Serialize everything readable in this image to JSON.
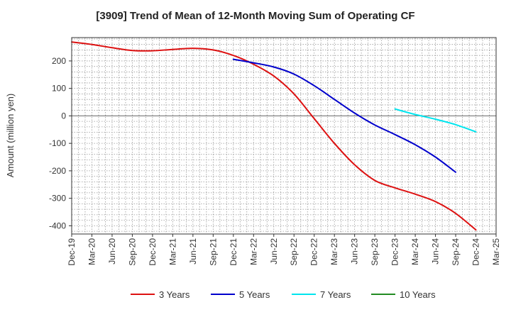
{
  "chart_data": {
    "type": "line",
    "title": "[3909]  Trend of Mean of 12-Month Moving Sum of Operating CF",
    "xlabel": "",
    "ylabel": "Amount (million yen)",
    "ylim": [
      -430,
      285
    ],
    "yticks": [
      200,
      100,
      0,
      -100,
      -200,
      -300,
      -400
    ],
    "x_tick_labels": [
      "Dec-19",
      "Mar-20",
      "Jun-20",
      "Sep-20",
      "Dec-20",
      "Mar-21",
      "Jun-21",
      "Sep-21",
      "Dec-21",
      "Mar-22",
      "Jun-22",
      "Sep-22",
      "Dec-22",
      "Mar-23",
      "Jun-23",
      "Sep-23",
      "Dec-23",
      "Mar-24",
      "Jun-24",
      "Sep-24",
      "Dec-24",
      "Mar-25"
    ],
    "grid": true,
    "legend_position": "bottom",
    "series": [
      {
        "name": "3 Years",
        "color": "#dd1111",
        "start_index": 0,
        "values": [
          269,
          260,
          248,
          238,
          237,
          242,
          246,
          240,
          220,
          188,
          145,
          80,
          -10,
          -100,
          -178,
          -235,
          -262,
          -285,
          -312,
          -355,
          -415
        ]
      },
      {
        "name": "5 Years",
        "color": "#0000cc",
        "start_index": 8,
        "values": [
          206,
          193,
          178,
          152,
          110,
          60,
          10,
          -33,
          -68,
          -105,
          -150,
          -205
        ]
      },
      {
        "name": "7 Years",
        "color": "#00e5ee",
        "start_index": 16,
        "values": [
          25,
          5,
          -12,
          -32,
          -58
        ]
      },
      {
        "name": "10 Years",
        "color": "#228b22",
        "start_index": 20,
        "values": []
      }
    ]
  }
}
